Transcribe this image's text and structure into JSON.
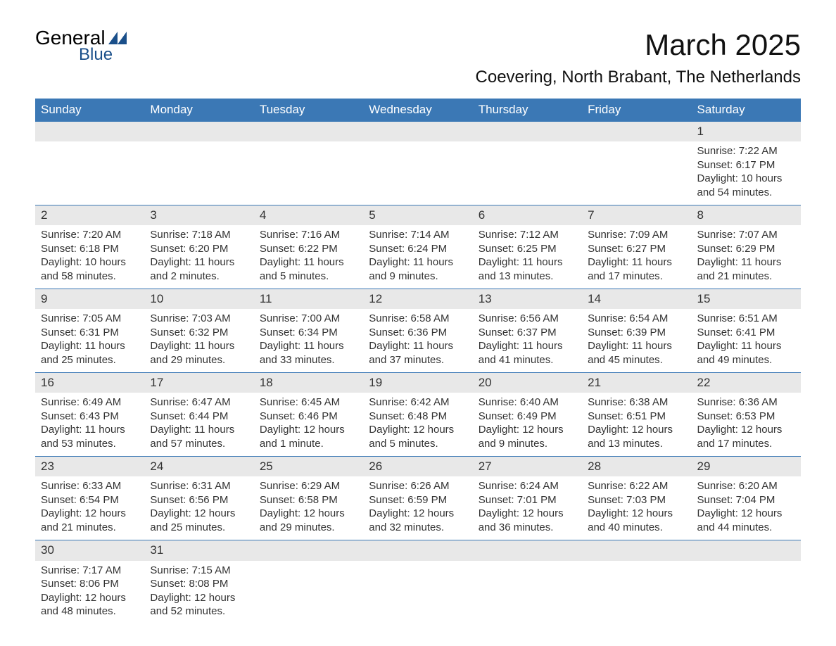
{
  "logo": {
    "general": "General",
    "blue": "Blue"
  },
  "title": "March 2025",
  "location": "Coevering, North Brabant, The Netherlands",
  "colors": {
    "header_bg": "#3b78b5",
    "header_text": "#ffffff",
    "daynum_bg": "#e8e8e8",
    "row_divider": "#3b78b5",
    "logo_accent": "#1a4f8a"
  },
  "weekdays": [
    "Sunday",
    "Monday",
    "Tuesday",
    "Wednesday",
    "Thursday",
    "Friday",
    "Saturday"
  ],
  "weeks": [
    {
      "days": [
        null,
        null,
        null,
        null,
        null,
        null,
        {
          "n": "1",
          "sr": "Sunrise: 7:22 AM",
          "ss": "Sunset: 6:17 PM",
          "dl": "Daylight: 10 hours and 54 minutes."
        }
      ]
    },
    {
      "days": [
        {
          "n": "2",
          "sr": "Sunrise: 7:20 AM",
          "ss": "Sunset: 6:18 PM",
          "dl": "Daylight: 10 hours and 58 minutes."
        },
        {
          "n": "3",
          "sr": "Sunrise: 7:18 AM",
          "ss": "Sunset: 6:20 PM",
          "dl": "Daylight: 11 hours and 2 minutes."
        },
        {
          "n": "4",
          "sr": "Sunrise: 7:16 AM",
          "ss": "Sunset: 6:22 PM",
          "dl": "Daylight: 11 hours and 5 minutes."
        },
        {
          "n": "5",
          "sr": "Sunrise: 7:14 AM",
          "ss": "Sunset: 6:24 PM",
          "dl": "Daylight: 11 hours and 9 minutes."
        },
        {
          "n": "6",
          "sr": "Sunrise: 7:12 AM",
          "ss": "Sunset: 6:25 PM",
          "dl": "Daylight: 11 hours and 13 minutes."
        },
        {
          "n": "7",
          "sr": "Sunrise: 7:09 AM",
          "ss": "Sunset: 6:27 PM",
          "dl": "Daylight: 11 hours and 17 minutes."
        },
        {
          "n": "8",
          "sr": "Sunrise: 7:07 AM",
          "ss": "Sunset: 6:29 PM",
          "dl": "Daylight: 11 hours and 21 minutes."
        }
      ]
    },
    {
      "days": [
        {
          "n": "9",
          "sr": "Sunrise: 7:05 AM",
          "ss": "Sunset: 6:31 PM",
          "dl": "Daylight: 11 hours and 25 minutes."
        },
        {
          "n": "10",
          "sr": "Sunrise: 7:03 AM",
          "ss": "Sunset: 6:32 PM",
          "dl": "Daylight: 11 hours and 29 minutes."
        },
        {
          "n": "11",
          "sr": "Sunrise: 7:00 AM",
          "ss": "Sunset: 6:34 PM",
          "dl": "Daylight: 11 hours and 33 minutes."
        },
        {
          "n": "12",
          "sr": "Sunrise: 6:58 AM",
          "ss": "Sunset: 6:36 PM",
          "dl": "Daylight: 11 hours and 37 minutes."
        },
        {
          "n": "13",
          "sr": "Sunrise: 6:56 AM",
          "ss": "Sunset: 6:37 PM",
          "dl": "Daylight: 11 hours and 41 minutes."
        },
        {
          "n": "14",
          "sr": "Sunrise: 6:54 AM",
          "ss": "Sunset: 6:39 PM",
          "dl": "Daylight: 11 hours and 45 minutes."
        },
        {
          "n": "15",
          "sr": "Sunrise: 6:51 AM",
          "ss": "Sunset: 6:41 PM",
          "dl": "Daylight: 11 hours and 49 minutes."
        }
      ]
    },
    {
      "days": [
        {
          "n": "16",
          "sr": "Sunrise: 6:49 AM",
          "ss": "Sunset: 6:43 PM",
          "dl": "Daylight: 11 hours and 53 minutes."
        },
        {
          "n": "17",
          "sr": "Sunrise: 6:47 AM",
          "ss": "Sunset: 6:44 PM",
          "dl": "Daylight: 11 hours and 57 minutes."
        },
        {
          "n": "18",
          "sr": "Sunrise: 6:45 AM",
          "ss": "Sunset: 6:46 PM",
          "dl": "Daylight: 12 hours and 1 minute."
        },
        {
          "n": "19",
          "sr": "Sunrise: 6:42 AM",
          "ss": "Sunset: 6:48 PM",
          "dl": "Daylight: 12 hours and 5 minutes."
        },
        {
          "n": "20",
          "sr": "Sunrise: 6:40 AM",
          "ss": "Sunset: 6:49 PM",
          "dl": "Daylight: 12 hours and 9 minutes."
        },
        {
          "n": "21",
          "sr": "Sunrise: 6:38 AM",
          "ss": "Sunset: 6:51 PM",
          "dl": "Daylight: 12 hours and 13 minutes."
        },
        {
          "n": "22",
          "sr": "Sunrise: 6:36 AM",
          "ss": "Sunset: 6:53 PM",
          "dl": "Daylight: 12 hours and 17 minutes."
        }
      ]
    },
    {
      "days": [
        {
          "n": "23",
          "sr": "Sunrise: 6:33 AM",
          "ss": "Sunset: 6:54 PM",
          "dl": "Daylight: 12 hours and 21 minutes."
        },
        {
          "n": "24",
          "sr": "Sunrise: 6:31 AM",
          "ss": "Sunset: 6:56 PM",
          "dl": "Daylight: 12 hours and 25 minutes."
        },
        {
          "n": "25",
          "sr": "Sunrise: 6:29 AM",
          "ss": "Sunset: 6:58 PM",
          "dl": "Daylight: 12 hours and 29 minutes."
        },
        {
          "n": "26",
          "sr": "Sunrise: 6:26 AM",
          "ss": "Sunset: 6:59 PM",
          "dl": "Daylight: 12 hours and 32 minutes."
        },
        {
          "n": "27",
          "sr": "Sunrise: 6:24 AM",
          "ss": "Sunset: 7:01 PM",
          "dl": "Daylight: 12 hours and 36 minutes."
        },
        {
          "n": "28",
          "sr": "Sunrise: 6:22 AM",
          "ss": "Sunset: 7:03 PM",
          "dl": "Daylight: 12 hours and 40 minutes."
        },
        {
          "n": "29",
          "sr": "Sunrise: 6:20 AM",
          "ss": "Sunset: 7:04 PM",
          "dl": "Daylight: 12 hours and 44 minutes."
        }
      ]
    },
    {
      "days": [
        {
          "n": "30",
          "sr": "Sunrise: 7:17 AM",
          "ss": "Sunset: 8:06 PM",
          "dl": "Daylight: 12 hours and 48 minutes."
        },
        {
          "n": "31",
          "sr": "Sunrise: 7:15 AM",
          "ss": "Sunset: 8:08 PM",
          "dl": "Daylight: 12 hours and 52 minutes."
        },
        null,
        null,
        null,
        null,
        null
      ]
    }
  ]
}
